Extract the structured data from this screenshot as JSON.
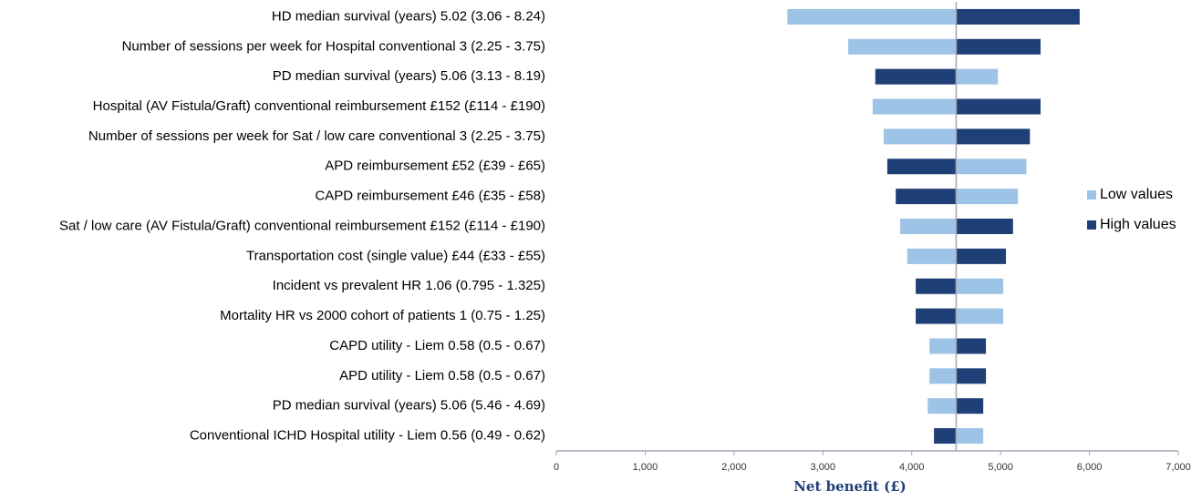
{
  "chart_data": {
    "type": "tornado",
    "categories": [
      "HD median survival (years) 5.02 (3.06 - 8.24)",
      "Number of sessions per week for Hospital conventional 3 (2.25 - 3.75)",
      "PD median survival (years) 5.06 (3.13 - 8.19)",
      "Hospital (AV Fistula/Graft) conventional reimbursement £152 (£114 - £190)",
      "Number of sessions per week for Sat / low care conventional 3 (2.25 - 3.75)",
      "APD reimbursement £52 (£39 - £65)",
      "CAPD reimbursement £46 (£35 - £58)",
      "Sat / low care (AV Fistula/Graft) conventional reimbursement £152 (£114 - £190)",
      "Transportation cost (single value) £44 (£33 - £55)",
      "Incident vs prevalent HR 1.06 (0.795 - 1.325)",
      "Mortality HR vs 2000 cohort of patients 1 (0.75 - 1.25)",
      "CAPD utility - Liem 0.58 (0.5 - 0.67)",
      "APD utility - Liem 0.58 (0.5 - 0.67)",
      "PD median survival (years) 5.06 (5.46 - 4.69)",
      "Conventional ICHD Hospital utility - Liem 0.56 (0.49 - 0.62)"
    ],
    "series": [
      {
        "name": "Low values",
        "color": "#9dc3e6",
        "values": [
          2600,
          3285,
          4970,
          3560,
          3685,
          5290,
          5195,
          3870,
          3950,
          5030,
          5030,
          4200,
          4200,
          4180,
          4805
        ]
      },
      {
        "name": "High values",
        "color": "#1f3f77",
        "values": [
          5890,
          5450,
          3590,
          5450,
          5330,
          3725,
          3820,
          5140,
          5060,
          4045,
          4045,
          4835,
          4835,
          4805,
          4250
        ]
      }
    ],
    "baseline": 4500,
    "xlabel": "Net benefit (£)",
    "xlim": [
      0,
      7000
    ],
    "xticks": [
      0,
      {
        "value": 1000,
        "label": "1,000"
      },
      {
        "value": 2000,
        "label": "2,000"
      },
      {
        "value": 3000,
        "label": "3,000"
      },
      {
        "value": 4000,
        "label": "4,000"
      },
      {
        "value": 5000,
        "label": "5,000"
      },
      {
        "value": 6000,
        "label": "6,000"
      },
      {
        "value": 7000,
        "label": "7,000"
      }
    ],
    "legend": "right"
  }
}
